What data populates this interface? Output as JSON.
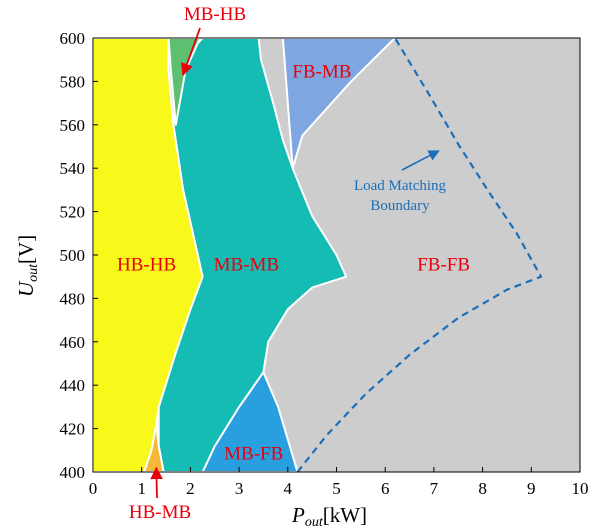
{
  "chart_data": {
    "type": "region-map",
    "title": "",
    "x": {
      "label_main": "P",
      "label_sub": "out",
      "label_unit": "[kW]",
      "lim": [
        0,
        10
      ],
      "ticks": [
        0,
        1,
        2,
        3,
        4,
        5,
        6,
        7,
        8,
        9,
        10
      ]
    },
    "y": {
      "label_main": "U",
      "label_sub": "out",
      "label_unit": "[V]",
      "lim": [
        400,
        600
      ],
      "ticks": [
        400,
        420,
        440,
        460,
        480,
        500,
        520,
        540,
        560,
        580,
        600
      ]
    },
    "grid": false,
    "regions": [
      {
        "name": "FB-FB",
        "color": "#cdcdcd",
        "label_at": [
          7.2,
          496
        ],
        "polygon": [
          [
            0,
            400
          ],
          [
            10,
            400
          ],
          [
            10,
            600
          ],
          [
            0,
            600
          ]
        ]
      },
      {
        "name": "FB-MB",
        "color": "#7ea6e0",
        "label_at": [
          4.7,
          585
        ],
        "polygon": [
          [
            3.4,
            600
          ],
          [
            6.2,
            600
          ],
          [
            5.3,
            580
          ],
          [
            4.3,
            555
          ],
          [
            4.1,
            540
          ],
          [
            3.9,
            600
          ]
        ]
      },
      {
        "name": "MB-FB",
        "color": "#2a9fe0",
        "label_at": [
          3.3,
          409
        ],
        "polygon": [
          [
            2.25,
            400
          ],
          [
            2.5,
            412
          ],
          [
            3.0,
            430
          ],
          [
            3.5,
            446
          ],
          [
            3.8,
            430
          ],
          [
            4.0,
            415
          ],
          [
            4.2,
            400
          ]
        ]
      },
      {
        "name": "MB-MB",
        "color": "#14bcb4",
        "label_at": [
          3.15,
          496
        ],
        "polygon": [
          [
            1.45,
            400
          ],
          [
            1.35,
            412
          ],
          [
            1.35,
            430
          ],
          [
            1.7,
            455
          ],
          [
            2.0,
            475
          ],
          [
            2.25,
            490
          ],
          [
            2.1,
            505
          ],
          [
            1.85,
            530
          ],
          [
            1.65,
            560
          ],
          [
            1.85,
            590
          ],
          [
            2.25,
            600
          ],
          [
            3.4,
            600
          ],
          [
            3.45,
            590
          ],
          [
            3.7,
            570
          ],
          [
            3.9,
            553
          ],
          [
            4.1,
            540
          ],
          [
            4.5,
            518
          ],
          [
            5.0,
            500
          ],
          [
            5.2,
            490
          ],
          [
            4.5,
            485
          ],
          [
            4.0,
            475
          ],
          [
            3.6,
            460
          ],
          [
            3.5,
            446
          ],
          [
            3.0,
            430
          ],
          [
            2.5,
            412
          ],
          [
            2.25,
            400
          ]
        ]
      },
      {
        "name": "MB-HB",
        "color": "#5cc070",
        "label_at": [
          1.55,
          606
        ],
        "polygon": [
          [
            1.55,
            600
          ],
          [
            2.2,
            600
          ],
          [
            1.9,
            585
          ],
          [
            1.7,
            560
          ],
          [
            1.6,
            585
          ]
        ]
      },
      {
        "name": "HB-MB",
        "color": "#f5b838",
        "label_at": [
          1.2,
          392
        ],
        "polygon": [
          [
            1.05,
            400
          ],
          [
            1.45,
            400
          ],
          [
            1.35,
            412
          ],
          [
            1.3,
            422
          ],
          [
            1.2,
            410
          ]
        ]
      },
      {
        "name": "HB-HB",
        "color": "#f8f81a",
        "label_at": [
          1.1,
          496
        ],
        "polygon": [
          [
            0,
            400
          ],
          [
            1.05,
            400
          ],
          [
            1.2,
            410
          ],
          [
            1.3,
            422
          ],
          [
            1.35,
            430
          ],
          [
            1.7,
            455
          ],
          [
            2.0,
            475
          ],
          [
            2.25,
            490
          ],
          [
            2.1,
            505
          ],
          [
            1.85,
            530
          ],
          [
            1.65,
            560
          ],
          [
            1.55,
            585
          ],
          [
            1.55,
            600
          ],
          [
            0,
            600
          ]
        ]
      }
    ],
    "boundary": {
      "name": "Load Matching Boundary",
      "style": "dashed",
      "color": "#1b6fb8",
      "points": [
        [
          4.2,
          400
        ],
        [
          4.8,
          417
        ],
        [
          5.6,
          436
        ],
        [
          6.5,
          454
        ],
        [
          7.5,
          471
        ],
        [
          8.5,
          484
        ],
        [
          9.2,
          490
        ],
        [
          8.7,
          510
        ],
        [
          8.1,
          530
        ],
        [
          7.5,
          551
        ],
        [
          6.9,
          574
        ],
        [
          6.2,
          600
        ]
      ]
    },
    "annotations": [
      {
        "text": "MB-HB",
        "color": "#e8000b",
        "arrow_to": [
          1.85,
          583
        ]
      },
      {
        "text": "HB-MB",
        "color": "#e8000b",
        "arrow_to": [
          1.3,
          401
        ]
      },
      {
        "text_lines": [
          "Load Matching",
          "Boundary"
        ],
        "color": "#1b6fb8",
        "arrow_to": [
          7.1,
          548
        ]
      }
    ]
  }
}
